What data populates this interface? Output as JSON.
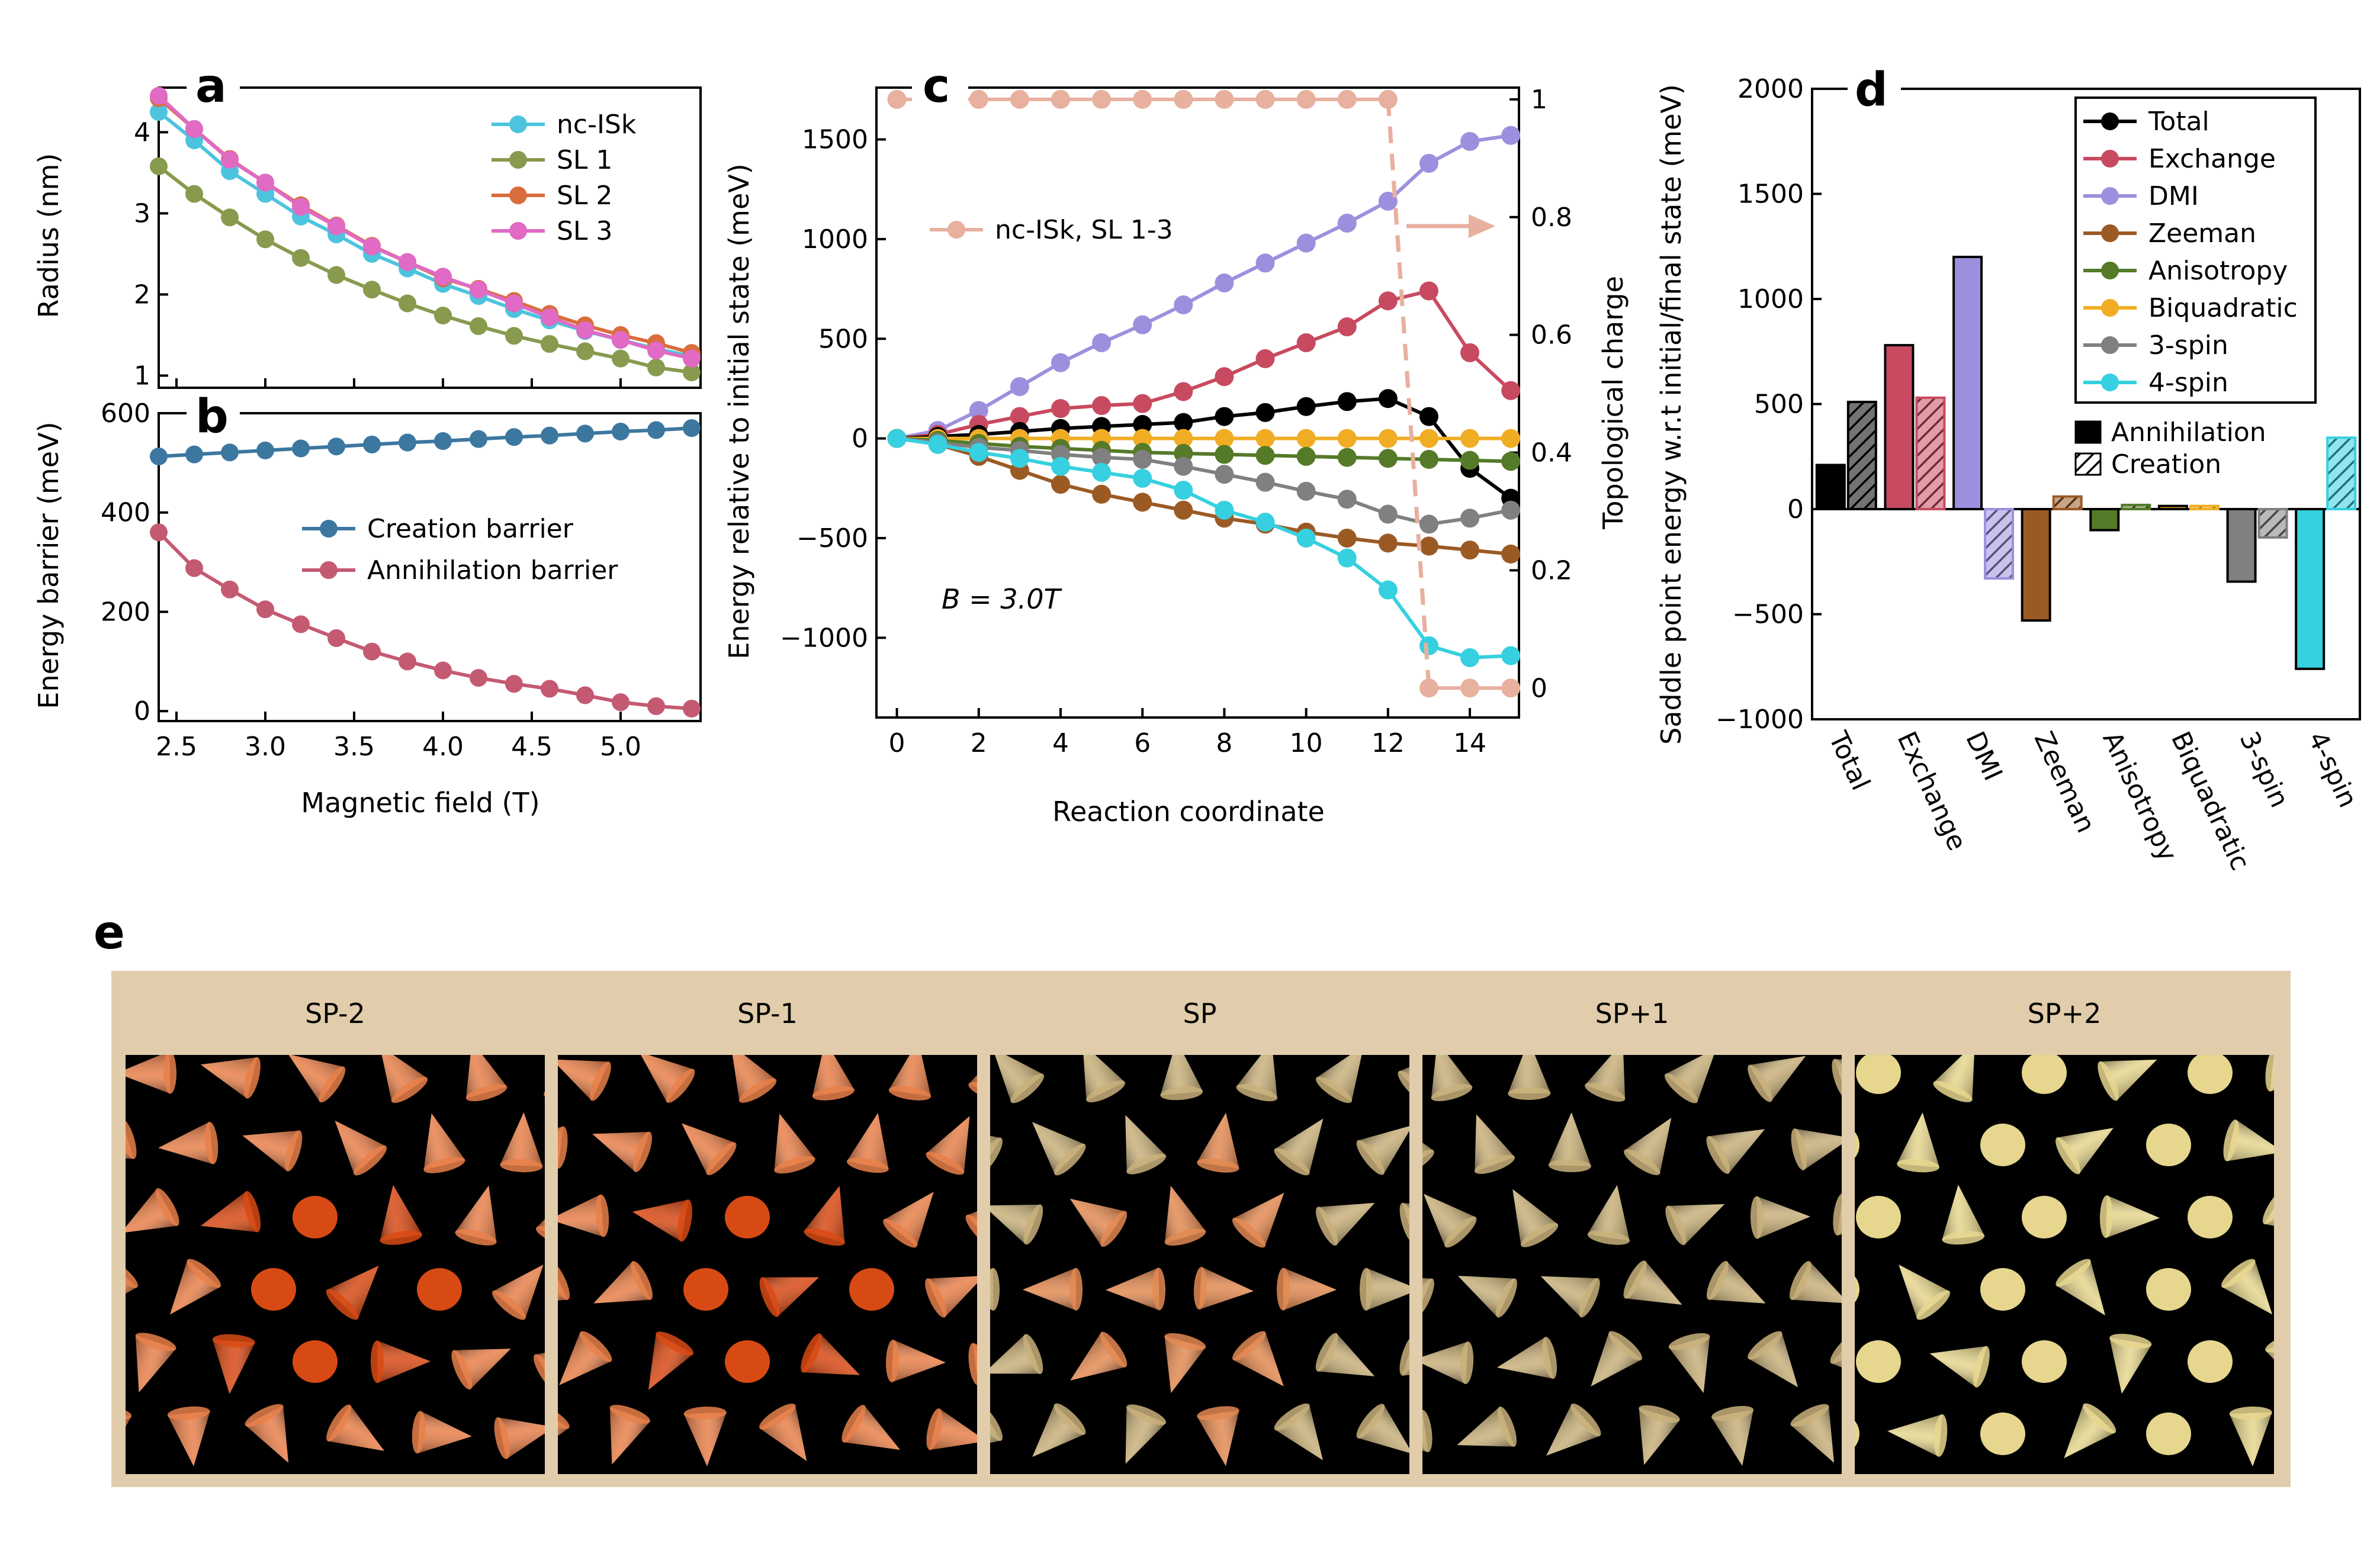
{
  "chart_data": [
    {
      "id": "a",
      "panel_label": "a",
      "type": "line",
      "title": "",
      "xlabel": "",
      "ylabel": "Radius (nm)",
      "xlim": [
        2.4,
        5.45
      ],
      "ylim": [
        0.85,
        4.55
      ],
      "yticks": [
        1,
        2,
        3,
        4
      ],
      "x": [
        2.4,
        2.6,
        2.8,
        3.0,
        3.2,
        3.4,
        3.6,
        3.8,
        4.0,
        4.2,
        4.4,
        4.6,
        4.8,
        5.0,
        5.2,
        5.4
      ],
      "legend_position": "top-right",
      "series": [
        {
          "name": "nc-ISk",
          "color": "#4dc4de",
          "values": [
            4.25,
            3.9,
            3.52,
            3.24,
            2.96,
            2.74,
            2.5,
            2.32,
            2.13,
            1.98,
            1.82,
            1.68,
            1.55,
            1.44,
            1.33,
            1.24
          ]
        },
        {
          "name": "SL 1",
          "color": "#889a4e",
          "values": [
            3.58,
            3.24,
            2.95,
            2.68,
            2.45,
            2.24,
            2.06,
            1.89,
            1.74,
            1.61,
            1.49,
            1.39,
            1.3,
            1.21,
            1.1,
            1.04
          ]
        },
        {
          "name": "SL 2",
          "color": "#d96d3c",
          "values": [
            4.42,
            4.04,
            3.67,
            3.38,
            3.1,
            2.85,
            2.6,
            2.4,
            2.2,
            2.07,
            1.92,
            1.76,
            1.62,
            1.5,
            1.4,
            1.28
          ]
        },
        {
          "name": "SL 3",
          "color": "#e06ac4",
          "values": [
            4.45,
            4.04,
            3.66,
            3.38,
            3.08,
            2.84,
            2.59,
            2.4,
            2.22,
            2.06,
            1.89,
            1.72,
            1.56,
            1.44,
            1.31,
            1.21
          ]
        }
      ]
    },
    {
      "id": "b",
      "panel_label": "b",
      "type": "line",
      "title": "",
      "xlabel": "Magnetic field (T)",
      "ylabel": "Energy barrier (meV)",
      "xlim": [
        2.4,
        5.45
      ],
      "ylim": [
        -20,
        600
      ],
      "yticks": [
        0,
        200,
        400,
        600
      ],
      "xticks": [
        2.5,
        3.0,
        3.5,
        4.0,
        4.5,
        5.0
      ],
      "xtick_labels": [
        "2.5",
        "3.0",
        "3.5",
        "4.0",
        "4.5",
        "5.0"
      ],
      "x": [
        2.4,
        2.6,
        2.8,
        3.0,
        3.2,
        3.4,
        3.6,
        3.8,
        4.0,
        4.2,
        4.4,
        4.6,
        4.8,
        5.0,
        5.2,
        5.4
      ],
      "legend_position": "center-right",
      "series": [
        {
          "name": "Creation barrier",
          "color": "#3c77a0",
          "values": [
            513,
            517,
            521,
            525,
            529,
            533,
            537,
            541,
            544,
            548,
            552,
            555,
            559,
            563,
            566,
            570
          ]
        },
        {
          "name": "Annihilation barrier",
          "color": "#c45a72",
          "values": [
            360,
            288,
            245,
            205,
            175,
            147,
            120,
            100,
            82,
            67,
            55,
            45,
            32,
            18,
            10,
            5
          ]
        }
      ]
    },
    {
      "id": "c",
      "panel_label": "c",
      "type": "line",
      "title": "",
      "xlabel": "Reaction coordinate",
      "ylabel": "Energy relative to initial state (meV)",
      "y2label": "Topological charge",
      "xlim": [
        -0.5,
        15.2
      ],
      "ylim": [
        -1400,
        1760
      ],
      "y2lim": [
        -0.05,
        1.02
      ],
      "xticks": [
        0,
        2,
        4,
        6,
        8,
        10,
        12,
        14
      ],
      "yticks": [
        -1000,
        -500,
        0,
        500,
        1000,
        1500
      ],
      "ytick_labels": [
        "−1000",
        "−500",
        "0",
        "500",
        "1000",
        "1500"
      ],
      "y2ticks": [
        0,
        0.2,
        0.4,
        0.6,
        0.8,
        1
      ],
      "y2tick_labels": [
        "0",
        "0.2",
        "0.4",
        "0.6",
        "0.8",
        "1"
      ],
      "x": [
        0,
        1,
        2,
        3,
        4,
        5,
        6,
        7,
        8,
        9,
        10,
        11,
        12,
        13,
        14,
        15
      ],
      "annotation": "B = 3.0T",
      "legend_position": "upper-left",
      "series": [
        {
          "name": "DMI",
          "color": "#9e8fde",
          "values": [
            0,
            40,
            140,
            260,
            380,
            480,
            570,
            670,
            780,
            880,
            980,
            1080,
            1190,
            1380,
            1490,
            1520
          ]
        },
        {
          "name": "Exchange",
          "color": "#c84a60",
          "values": [
            0,
            20,
            70,
            110,
            150,
            165,
            175,
            235,
            310,
            400,
            480,
            560,
            690,
            740,
            430,
            240
          ]
        },
        {
          "name": "Total",
          "color": "#000000",
          "values": [
            0,
            10,
            20,
            35,
            50,
            60,
            70,
            80,
            110,
            130,
            160,
            185,
            200,
            110,
            -150,
            -300
          ]
        },
        {
          "name": "Biquadratic",
          "color": "#f0ad24",
          "values": [
            0,
            0,
            0,
            0,
            0,
            0,
            0,
            0,
            0,
            0,
            0,
            0,
            0,
            0,
            0,
            0
          ]
        },
        {
          "name": "Anisotropy",
          "color": "#557a28",
          "values": [
            0,
            -10,
            -25,
            -40,
            -50,
            -60,
            -70,
            -75,
            -80,
            -85,
            -90,
            -95,
            -100,
            -105,
            -110,
            -115
          ]
        },
        {
          "name": "3-spin",
          "color": "#808080",
          "values": [
            0,
            -20,
            -45,
            -60,
            -80,
            -95,
            -105,
            -140,
            -180,
            -220,
            -265,
            -305,
            -380,
            -430,
            -400,
            -360
          ]
        },
        {
          "name": "Zeeman",
          "color": "#9b5a24",
          "values": [
            0,
            -30,
            -90,
            -160,
            -230,
            -280,
            -320,
            -360,
            -400,
            -430,
            -470,
            -500,
            -525,
            -540,
            -560,
            -580
          ]
        },
        {
          "name": "4-spin",
          "color": "#36d0e0",
          "values": [
            0,
            -30,
            -70,
            -100,
            -140,
            -170,
            -200,
            -260,
            -360,
            -420,
            -500,
            -600,
            -760,
            -1040,
            -1100,
            -1090
          ]
        },
        {
          "name": "nc-ISk, SL 1-3",
          "axis": "right",
          "color": "#e8b09e",
          "values": [
            1,
            1,
            1,
            1,
            1,
            1,
            1,
            1,
            1,
            1,
            1,
            1,
            1,
            0,
            0,
            0
          ]
        }
      ]
    },
    {
      "id": "d",
      "panel_label": "d",
      "type": "bar",
      "title": "",
      "xlabel": "",
      "ylabel": "Saddle point energy  w.r.t initial/final state (meV)",
      "ylim": [
        -1000,
        2000
      ],
      "yticks": [
        -1000,
        -500,
        0,
        500,
        1000,
        1500,
        2000
      ],
      "ytick_labels": [
        "−1000",
        "−500",
        "0",
        "500",
        "1000",
        "1500",
        "2000"
      ],
      "categories": [
        "Total",
        "Exchange",
        "DMI",
        "Zeeman",
        "Anisotropy",
        "Biquadratic",
        "3-spin",
        "4-spin"
      ],
      "colors": [
        "#000000",
        "#c84a60",
        "#9e8fde",
        "#9b5a24",
        "#557a28",
        "#f0ad24",
        "#808080",
        "#36d0e0"
      ],
      "legend_position": "top-right",
      "legend_labels": [
        "Annihilation",
        "Creation"
      ],
      "series": [
        {
          "name": "Annihilation",
          "pattern": "solid",
          "values": [
            210,
            780,
            1200,
            -530,
            -100,
            15,
            -345,
            -760
          ]
        },
        {
          "name": "Creation",
          "pattern": "hatched",
          "values": [
            510,
            530,
            -330,
            60,
            20,
            15,
            -135,
            340
          ]
        }
      ]
    }
  ],
  "panel_e": {
    "label": "e",
    "frames": [
      {
        "title": "SP-2",
        "stage": 0
      },
      {
        "title": "SP-1",
        "stage": 1
      },
      {
        "title": "SP",
        "stage": 2
      },
      {
        "title": "SP+1",
        "stage": 3
      },
      {
        "title": "SP+2",
        "stage": 4
      }
    ]
  }
}
